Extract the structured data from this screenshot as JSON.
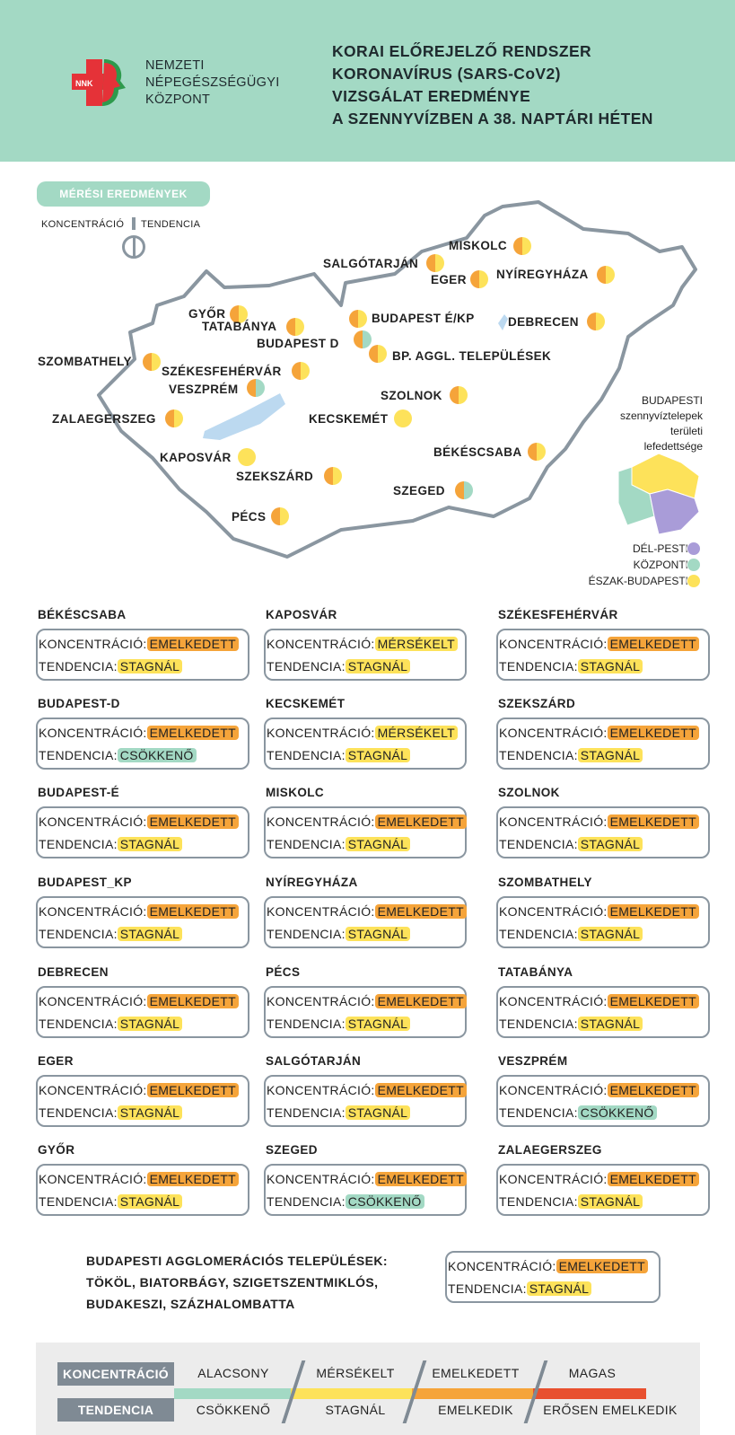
{
  "header": {
    "org_lines": [
      "NEMZETI",
      "NÉPEGÉSZSÉGÜGYI",
      "KÖZPONT"
    ],
    "logo_text": "NNK",
    "title_lines": [
      "KORAI ELŐREJELZŐ RENDSZER",
      "KORONAVÍRUS (SARS-CoV2)",
      "VIZSGÁLAT EREDMÉNYE",
      "A SZENNYVÍZBEN A 38. NAPTÁRI HÉTEN"
    ]
  },
  "section_label": "MÉRÉSI EREDMÉNYEK",
  "key": {
    "left": "KONCENTRÁCIÓ",
    "right": "TENDENCIA"
  },
  "colors": {
    "emelkedett": "#f5a43a",
    "mersekelt": "#fde25a",
    "stagnal": "#fde25a",
    "csokkeno": "#a3d9c4",
    "magas": "#e8502f",
    "alacsony": "#a3d9c4",
    "emelkedik": "#f5a43a",
    "del_pesti": "#a99cd8",
    "kozponti": "#a3d9c4",
    "eszak_budapesti": "#fde25a",
    "accent": "#a3d9c4",
    "border": "#8a96a0"
  },
  "map_cities": [
    {
      "name": "MISKOLC",
      "conc": "emelkedett",
      "trend": "stagnal"
    },
    {
      "name": "SALGÓTARJÁN",
      "conc": "emelkedett",
      "trend": "stagnal"
    },
    {
      "name": "EGER",
      "conc": "emelkedett",
      "trend": "stagnal"
    },
    {
      "name": "NYÍREGYHÁZA",
      "conc": "emelkedett",
      "trend": "stagnal"
    },
    {
      "name": "GYŐR",
      "conc": "emelkedett",
      "trend": "stagnal"
    },
    {
      "name": "TATABÁNYA",
      "conc": "emelkedett",
      "trend": "stagnal"
    },
    {
      "name": "BUDAPEST É/KP",
      "conc": "emelkedett",
      "trend": "stagnal"
    },
    {
      "name": "DEBRECEN",
      "conc": "emelkedett",
      "trend": "stagnal"
    },
    {
      "name": "BUDAPEST D",
      "conc": "emelkedett",
      "trend": "csokkeno"
    },
    {
      "name": "BP. AGGL. TELEPÜLÉSEK",
      "conc": "emelkedett",
      "trend": "stagnal"
    },
    {
      "name": "SZOMBATHELY",
      "conc": "emelkedett",
      "trend": "stagnal"
    },
    {
      "name": "SZÉKESFEHÉRVÁR",
      "conc": "emelkedett",
      "trend": "stagnal"
    },
    {
      "name": "VESZPRÉM",
      "conc": "emelkedett",
      "trend": "csokkeno"
    },
    {
      "name": "SZOLNOK",
      "conc": "emelkedett",
      "trend": "stagnal"
    },
    {
      "name": "ZALAEGERSZEG",
      "conc": "emelkedett",
      "trend": "stagnal"
    },
    {
      "name": "KECSKEMÉT",
      "conc": "mersekelt",
      "trend": "stagnal"
    },
    {
      "name": "BÉKÉSCSABA",
      "conc": "emelkedett",
      "trend": "stagnal"
    },
    {
      "name": "KAPOSVÁR",
      "conc": "mersekelt",
      "trend": "stagnal"
    },
    {
      "name": "SZEKSZÁRD",
      "conc": "emelkedett",
      "trend": "stagnal"
    },
    {
      "name": "SZEGED",
      "conc": "emelkedett",
      "trend": "csokkeno"
    },
    {
      "name": "PÉCS",
      "conc": "emelkedett",
      "trend": "stagnal"
    }
  ],
  "bp_legend": {
    "title_lines": [
      "BUDAPESTI",
      "szennyvíztelepek",
      "területi",
      "lefedettsége"
    ],
    "items": [
      "DÉL-PESTI",
      "KÖZPONTI",
      "ÉSZAK-BUDAPESTI"
    ]
  },
  "labels": {
    "conc": "KONCENTRÁCIÓ:",
    "trend": "TENDENCIA:"
  },
  "values": {
    "emelkedett": "EMELKEDETT",
    "mersekelt": "MÉRSÉKELT",
    "stagnal": "STAGNÁL",
    "csokkeno": "CSÖKKENŐ"
  },
  "boxes": [
    {
      "name": "BÉKÉSCSABA",
      "conc": "emelkedett",
      "trend": "stagnal"
    },
    {
      "name": "KAPOSVÁR",
      "conc": "mersekelt",
      "trend": "stagnal"
    },
    {
      "name": "SZÉKESFEHÉRVÁR",
      "conc": "emelkedett",
      "trend": "stagnal"
    },
    {
      "name": "BUDAPEST-D",
      "conc": "emelkedett",
      "trend": "csokkeno"
    },
    {
      "name": "KECSKEMÉT",
      "conc": "mersekelt",
      "trend": "stagnal"
    },
    {
      "name": "SZEKSZÁRD",
      "conc": "emelkedett",
      "trend": "stagnal"
    },
    {
      "name": "BUDAPEST-É",
      "conc": "emelkedett",
      "trend": "stagnal"
    },
    {
      "name": "MISKOLC",
      "conc": "emelkedett",
      "trend": "stagnal"
    },
    {
      "name": "SZOLNOK",
      "conc": "emelkedett",
      "trend": "stagnal"
    },
    {
      "name": "BUDAPEST_KP",
      "conc": "emelkedett",
      "trend": "stagnal"
    },
    {
      "name": "NYÍREGYHÁZA",
      "conc": "emelkedett",
      "trend": "stagnal"
    },
    {
      "name": "SZOMBATHELY",
      "conc": "emelkedett",
      "trend": "stagnal"
    },
    {
      "name": "DEBRECEN",
      "conc": "emelkedett",
      "trend": "stagnal"
    },
    {
      "name": "PÉCS",
      "conc": "emelkedett",
      "trend": "stagnal"
    },
    {
      "name": "TATABÁNYA",
      "conc": "emelkedett",
      "trend": "stagnal"
    },
    {
      "name": "EGER",
      "conc": "emelkedett",
      "trend": "stagnal"
    },
    {
      "name": "SALGÓTARJÁN",
      "conc": "emelkedett",
      "trend": "stagnal"
    },
    {
      "name": "VESZPRÉM",
      "conc": "emelkedett",
      "trend": "csokkeno"
    },
    {
      "name": "GYŐR",
      "conc": "emelkedett",
      "trend": "stagnal"
    },
    {
      "name": "SZEGED",
      "conc": "emelkedett",
      "trend": "csokkeno"
    },
    {
      "name": "ZALAEGERSZEG",
      "conc": "emelkedett",
      "trend": "stagnal"
    }
  ],
  "agglo": {
    "lines": [
      "BUDAPESTI AGGLOMERÁCIÓS TELEPÜLÉSEK:",
      "TÖKÖL, BIATORBÁGY, SZIGETSZENTMIKLÓS,",
      "BUDAKESZI, SZÁZHALOMBATTA"
    ],
    "conc": "emelkedett",
    "trend": "stagnal"
  },
  "scale": {
    "conc_label": "KONCENTRÁCIÓ",
    "trend_label": "TENDENCIA",
    "conc_levels": [
      "ALACSONY",
      "MÉRSÉKELT",
      "EMELKEDETT",
      "MAGAS"
    ],
    "trend_levels": [
      "CSÖKKENŐ",
      "STAGNÁL",
      "EMELKEDIK",
      "ERŐSEN EMELKEDIK"
    ]
  }
}
